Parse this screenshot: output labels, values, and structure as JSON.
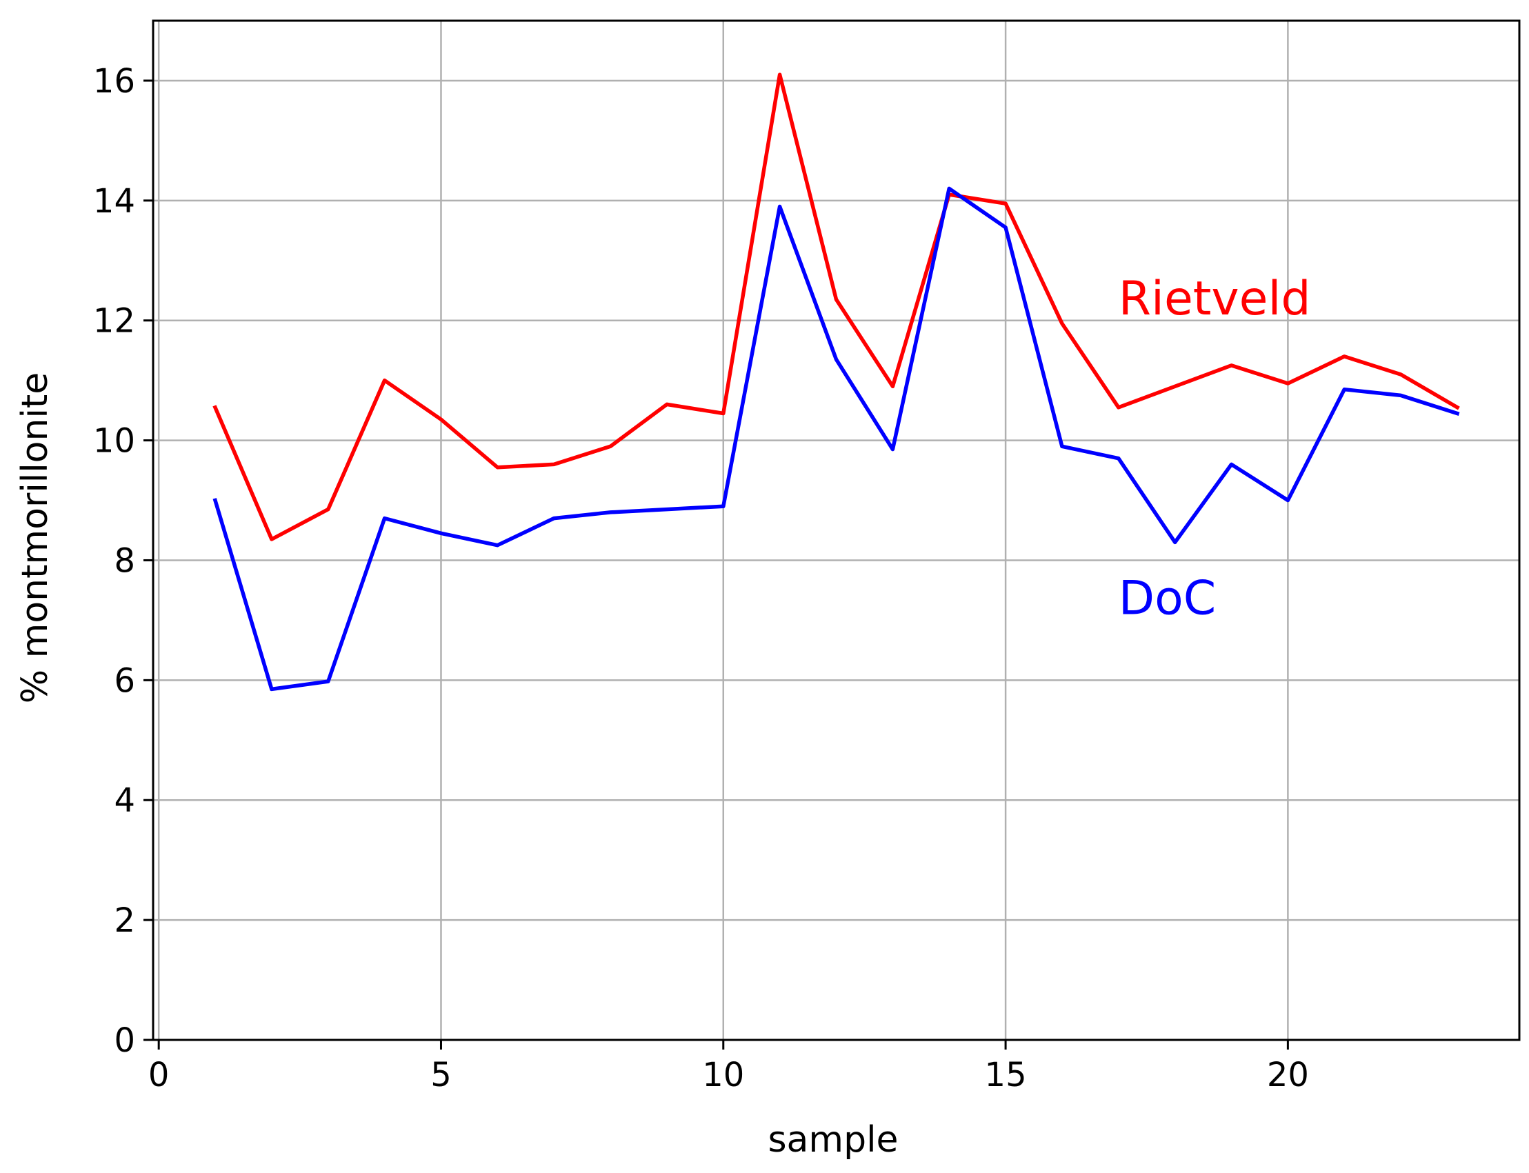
{
  "chart_data": {
    "type": "line",
    "title": "",
    "xlabel": "sample",
    "ylabel": "% montmorillonite",
    "xlim": [
      -0.1,
      24.1
    ],
    "ylim": [
      0,
      17
    ],
    "x_ticks": [
      0,
      5,
      10,
      15,
      20
    ],
    "y_ticks": [
      0,
      2,
      4,
      6,
      8,
      10,
      12,
      14,
      16
    ],
    "grid": true,
    "x": [
      1,
      2,
      3,
      4,
      5,
      6,
      7,
      8,
      9,
      10,
      11,
      12,
      13,
      14,
      15,
      16,
      17,
      18,
      19,
      20,
      21,
      22,
      23
    ],
    "series": [
      {
        "name": "Rietveld",
        "color": "#ff0000",
        "label_position": {
          "x": 17,
          "y": 12.1
        },
        "values": [
          10.55,
          8.35,
          8.85,
          11.0,
          10.35,
          9.55,
          9.6,
          9.9,
          10.6,
          10.45,
          16.1,
          12.35,
          10.9,
          14.1,
          13.95,
          11.95,
          10.55,
          10.9,
          11.25,
          10.95,
          11.4,
          11.1,
          10.55
        ]
      },
      {
        "name": "DoC",
        "color": "#0000ff",
        "label_position": {
          "x": 17,
          "y": 7.1
        },
        "values": [
          9.0,
          5.85,
          5.98,
          8.7,
          8.45,
          8.25,
          8.7,
          8.8,
          8.85,
          8.9,
          13.9,
          11.35,
          9.85,
          14.2,
          13.55,
          9.9,
          9.7,
          8.3,
          9.6,
          9.0,
          10.85,
          10.75,
          10.45
        ]
      }
    ]
  }
}
